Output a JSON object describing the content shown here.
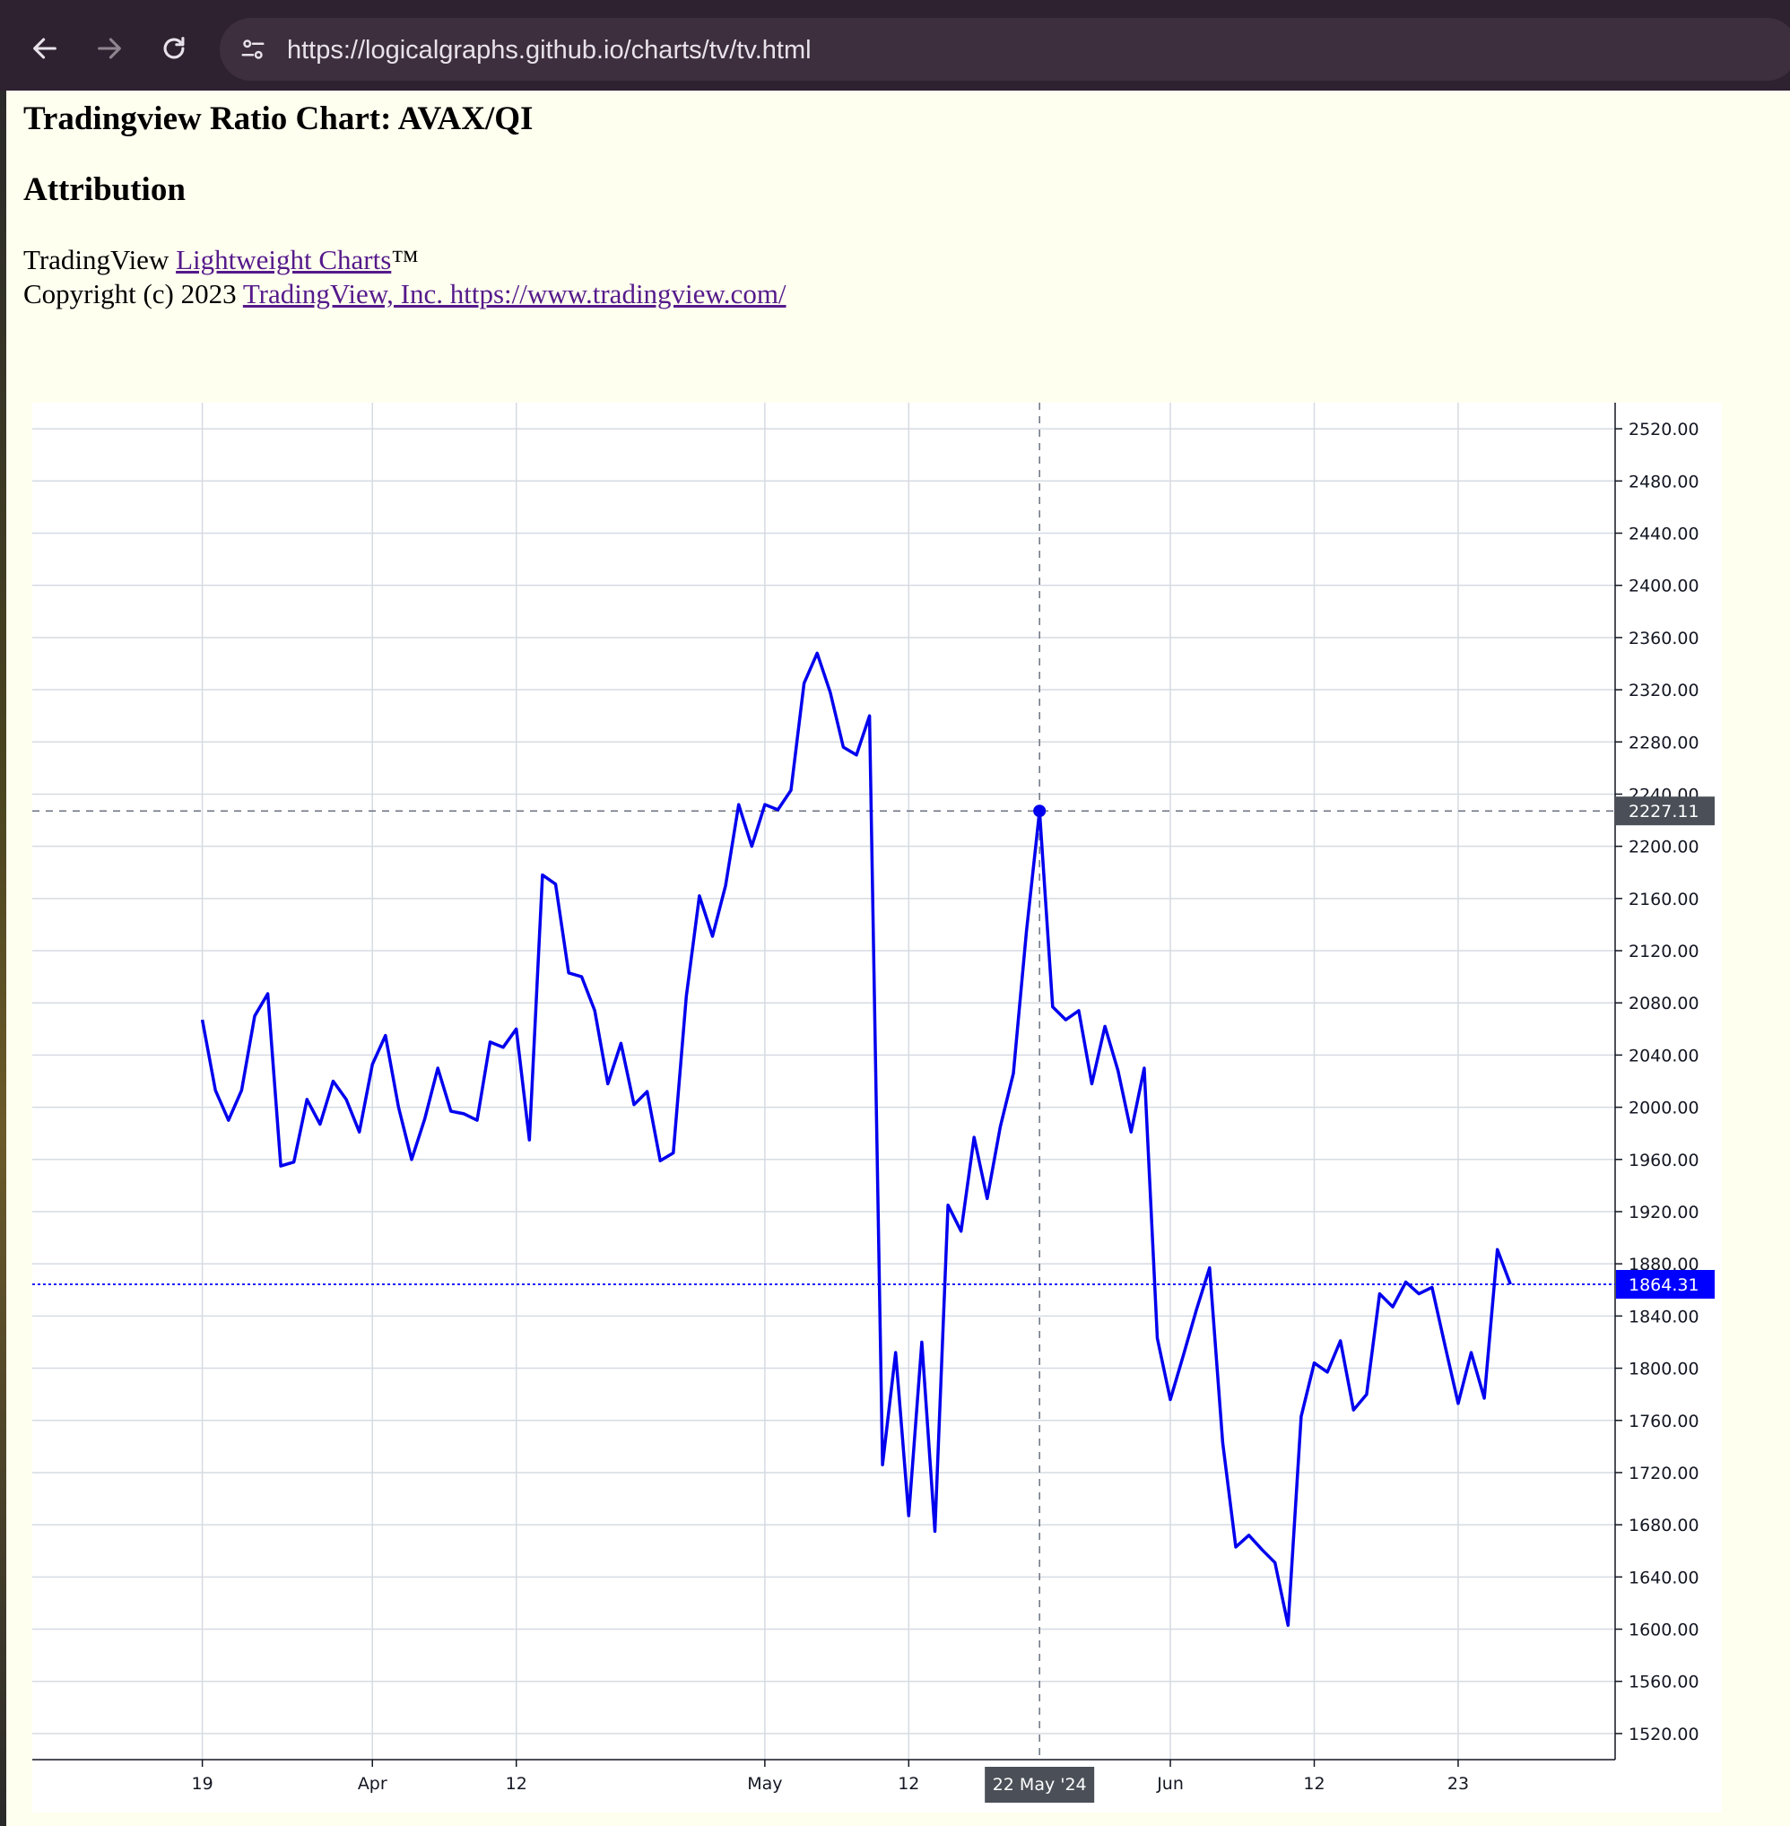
{
  "browser": {
    "url": "https://logicalgraphs.github.io/charts/tv/tv.html",
    "back_icon": "arrow-left-icon",
    "forward_icon": "arrow-right-icon",
    "reload_icon": "reload-icon",
    "site_info_icon": "tune-icon"
  },
  "page": {
    "title": "Tradingview Ratio Chart: AVAX/QI",
    "attribution_heading": "Attribution",
    "line1_prefix": "TradingView ",
    "line1_link": "Lightweight Charts",
    "line1_suffix": "™",
    "line2_prefix": "Copyright (c) 2023 ",
    "line2_link": "TradingView, Inc. https://www.tradingview.com/"
  },
  "colors": {
    "series": "#0000ee",
    "grid": "#d6dbe2",
    "crosshair": "#6b7280",
    "crosshair_label_bg": "#4b5058",
    "last_price_bg": "#0000ff",
    "page_bg": "#fffff0"
  },
  "chart_data": {
    "type": "line",
    "title": "",
    "xlabel": "",
    "ylabel": "",
    "grid": true,
    "ylim": [
      1500,
      2540
    ],
    "y_ticks": [
      1520,
      1560,
      1600,
      1640,
      1680,
      1720,
      1760,
      1800,
      1840,
      1880,
      1920,
      1960,
      2000,
      2040,
      2080,
      2120,
      2160,
      2200,
      2240,
      2280,
      2320,
      2360,
      2400,
      2440,
      2480,
      2520
    ],
    "y_tick_labels": [
      "1520.00",
      "1560.00",
      "1600.00",
      "1640.00",
      "1680.00",
      "1720.00",
      "1760.00",
      "1800.00",
      "1840.00",
      "1880.00",
      "1920.00",
      "1960.00",
      "2000.00",
      "2040.00",
      "2080.00",
      "2120.00",
      "2160.00",
      "2200.00",
      "2240.00",
      "2280.00",
      "2320.00",
      "2360.00",
      "2400.00",
      "2440.00",
      "2480.00",
      "2520.00"
    ],
    "x_range": [
      "2024-03-06",
      "2024-07-05"
    ],
    "x_ticks": [
      {
        "date": "2024-03-19",
        "label": "19"
      },
      {
        "date": "2024-04-01",
        "label": "Apr"
      },
      {
        "date": "2024-04-12",
        "label": "12"
      },
      {
        "date": "2024-05-01",
        "label": "May"
      },
      {
        "date": "2024-05-12",
        "label": "12"
      },
      {
        "date": "2024-06-01",
        "label": "Jun"
      },
      {
        "date": "2024-06-12",
        "label": "12"
      },
      {
        "date": "2024-06-23",
        "label": "23"
      }
    ],
    "series": [
      {
        "points": [
          {
            "x": "2024-03-19",
            "y": 2067
          },
          {
            "x": "2024-03-20",
            "y": 2013
          },
          {
            "x": "2024-03-21",
            "y": 1990
          },
          {
            "x": "2024-03-22",
            "y": 2013
          },
          {
            "x": "2024-03-23",
            "y": 2070
          },
          {
            "x": "2024-03-24",
            "y": 2087
          },
          {
            "x": "2024-03-25",
            "y": 1955
          },
          {
            "x": "2024-03-26",
            "y": 1958
          },
          {
            "x": "2024-03-27",
            "y": 2006
          },
          {
            "x": "2024-03-28",
            "y": 1987
          },
          {
            "x": "2024-03-29",
            "y": 2020
          },
          {
            "x": "2024-03-30",
            "y": 2006
          },
          {
            "x": "2024-03-31",
            "y": 1981
          },
          {
            "x": "2024-04-01",
            "y": 2033
          },
          {
            "x": "2024-04-02",
            "y": 2055
          },
          {
            "x": "2024-04-03",
            "y": 2000
          },
          {
            "x": "2024-04-04",
            "y": 1960
          },
          {
            "x": "2024-04-05",
            "y": 1991
          },
          {
            "x": "2024-04-06",
            "y": 2030
          },
          {
            "x": "2024-04-07",
            "y": 1997
          },
          {
            "x": "2024-04-08",
            "y": 1995
          },
          {
            "x": "2024-04-09",
            "y": 1990
          },
          {
            "x": "2024-04-10",
            "y": 2050
          },
          {
            "x": "2024-04-11",
            "y": 2046
          },
          {
            "x": "2024-04-12",
            "y": 2060
          },
          {
            "x": "2024-04-13",
            "y": 1975
          },
          {
            "x": "2024-04-14",
            "y": 2178
          },
          {
            "x": "2024-04-15",
            "y": 2171
          },
          {
            "x": "2024-04-16",
            "y": 2103
          },
          {
            "x": "2024-04-17",
            "y": 2100
          },
          {
            "x": "2024-04-18",
            "y": 2074
          },
          {
            "x": "2024-04-19",
            "y": 2018
          },
          {
            "x": "2024-04-20",
            "y": 2049
          },
          {
            "x": "2024-04-21",
            "y": 2002
          },
          {
            "x": "2024-04-22",
            "y": 2012
          },
          {
            "x": "2024-04-23",
            "y": 1959
          },
          {
            "x": "2024-04-24",
            "y": 1965
          },
          {
            "x": "2024-04-25",
            "y": 2085
          },
          {
            "x": "2024-04-26",
            "y": 2162
          },
          {
            "x": "2024-04-27",
            "y": 2131
          },
          {
            "x": "2024-04-28",
            "y": 2170
          },
          {
            "x": "2024-04-29",
            "y": 2232
          },
          {
            "x": "2024-04-30",
            "y": 2200
          },
          {
            "x": "2024-05-01",
            "y": 2232
          },
          {
            "x": "2024-05-02",
            "y": 2228
          },
          {
            "x": "2024-05-03",
            "y": 2243
          },
          {
            "x": "2024-05-04",
            "y": 2325
          },
          {
            "x": "2024-05-05",
            "y": 2348
          },
          {
            "x": "2024-05-06",
            "y": 2318
          },
          {
            "x": "2024-05-07",
            "y": 2276
          },
          {
            "x": "2024-05-08",
            "y": 2270
          },
          {
            "x": "2024-05-09",
            "y": 2300
          },
          {
            "x": "2024-05-10",
            "y": 1726
          },
          {
            "x": "2024-05-11",
            "y": 1812
          },
          {
            "x": "2024-05-12",
            "y": 1687
          },
          {
            "x": "2024-05-13",
            "y": 1820
          },
          {
            "x": "2024-05-14",
            "y": 1675
          },
          {
            "x": "2024-05-15",
            "y": 1925
          },
          {
            "x": "2024-05-16",
            "y": 1905
          },
          {
            "x": "2024-05-17",
            "y": 1977
          },
          {
            "x": "2024-05-18",
            "y": 1930
          },
          {
            "x": "2024-05-19",
            "y": 1985
          },
          {
            "x": "2024-05-20",
            "y": 2026
          },
          {
            "x": "2024-05-21",
            "y": 2135
          },
          {
            "x": "2024-05-22",
            "y": 2227.11
          },
          {
            "x": "2024-05-23",
            "y": 2077
          },
          {
            "x": "2024-05-24",
            "y": 2067
          },
          {
            "x": "2024-05-25",
            "y": 2074
          },
          {
            "x": "2024-05-26",
            "y": 2018
          },
          {
            "x": "2024-05-27",
            "y": 2062
          },
          {
            "x": "2024-05-28",
            "y": 2028
          },
          {
            "x": "2024-05-29",
            "y": 1981
          },
          {
            "x": "2024-05-30",
            "y": 2030
          },
          {
            "x": "2024-05-31",
            "y": 1823
          },
          {
            "x": "2024-06-01",
            "y": 1776
          },
          {
            "x": "2024-06-02",
            "y": 1810
          },
          {
            "x": "2024-06-03",
            "y": 1845
          },
          {
            "x": "2024-06-04",
            "y": 1877
          },
          {
            "x": "2024-06-05",
            "y": 1743
          },
          {
            "x": "2024-06-06",
            "y": 1663
          },
          {
            "x": "2024-06-07",
            "y": 1672
          },
          {
            "x": "2024-06-08",
            "y": 1661
          },
          {
            "x": "2024-06-09",
            "y": 1651
          },
          {
            "x": "2024-06-10",
            "y": 1603
          },
          {
            "x": "2024-06-11",
            "y": 1763
          },
          {
            "x": "2024-06-12",
            "y": 1804
          },
          {
            "x": "2024-06-13",
            "y": 1797
          },
          {
            "x": "2024-06-14",
            "y": 1821
          },
          {
            "x": "2024-06-15",
            "y": 1768
          },
          {
            "x": "2024-06-16",
            "y": 1780
          },
          {
            "x": "2024-06-17",
            "y": 1857
          },
          {
            "x": "2024-06-18",
            "y": 1847
          },
          {
            "x": "2024-06-19",
            "y": 1866
          },
          {
            "x": "2024-06-20",
            "y": 1857
          },
          {
            "x": "2024-06-21",
            "y": 1862
          },
          {
            "x": "2024-06-22",
            "y": 1817
          },
          {
            "x": "2024-06-23",
            "y": 1773
          },
          {
            "x": "2024-06-24",
            "y": 1812
          },
          {
            "x": "2024-06-25",
            "y": 1777
          },
          {
            "x": "2024-06-26",
            "y": 1891
          },
          {
            "x": "2024-06-27",
            "y": 1864.31
          }
        ]
      }
    ],
    "crosshair": {
      "date": "2024-05-22",
      "value": 2227.11,
      "date_label": "22 May '24",
      "value_label": "2227.11"
    },
    "last_value": {
      "value": 1864.31,
      "label": "1864.31"
    }
  }
}
